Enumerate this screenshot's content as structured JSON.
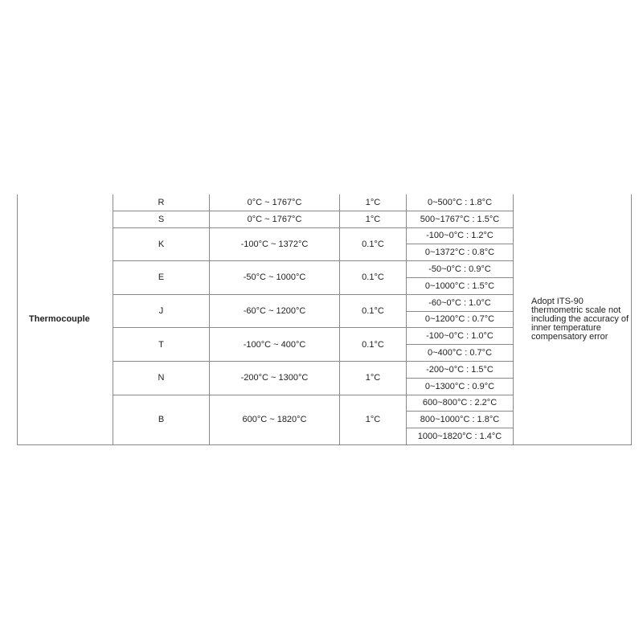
{
  "category": "Thermocouple",
  "note": "Adopt ITS-90 thermometric scale not including the accuracy of inner temperature compensatory error",
  "rows": [
    {
      "type": "R",
      "range": "0°C ~ 1767°C",
      "resolution": "1°C",
      "accuracy": [
        "0~500°C : 1.8°C"
      ]
    },
    {
      "type": "S",
      "range": "0°C ~ 1767°C",
      "resolution": "1°C",
      "accuracy": [
        "500~1767°C : 1.5°C"
      ]
    },
    {
      "type": "K",
      "range": "-100°C ~ 1372°C",
      "resolution": "0.1°C",
      "accuracy": [
        "-100~0°C : 1.2°C",
        "0~1372°C : 0.8°C"
      ]
    },
    {
      "type": "E",
      "range": "-50°C ~ 1000°C",
      "resolution": "0.1°C",
      "accuracy": [
        "-50~0°C : 0.9°C",
        "0~1000°C : 1.5°C"
      ]
    },
    {
      "type": "J",
      "range": "-60°C ~ 1200°C",
      "resolution": "0.1°C",
      "accuracy": [
        "-60~0°C : 1.0°C",
        "0~1200°C : 0.7°C"
      ]
    },
    {
      "type": "T",
      "range": "-100°C ~ 400°C",
      "resolution": "0.1°C",
      "accuracy": [
        "-100~0°C : 1.0°C",
        "0~400°C : 0.7°C"
      ]
    },
    {
      "type": "N",
      "range": "-200°C ~ 1300°C",
      "resolution": "1°C",
      "accuracy": [
        "-200~0°C : 1.5°C",
        "0~1300°C : 0.9°C"
      ]
    },
    {
      "type": "B",
      "range": "600°C ~ 1820°C",
      "resolution": "1°C",
      "accuracy": [
        "600~800°C : 2.2°C",
        "800~1000°C : 1.8°C",
        "1000~1820°C : 1.4°C"
      ]
    }
  ]
}
